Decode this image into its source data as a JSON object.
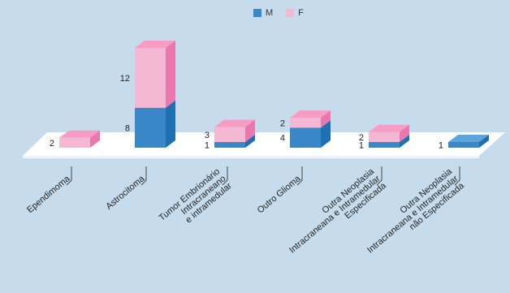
{
  "chart_data": {
    "type": "bar",
    "stacked": true,
    "three_d": true,
    "legend_position": "top-center",
    "categories": [
      "Ependimoma",
      "Astrocitoma",
      "Tumor Embrionário\nIntracraneano\ne intramedular",
      "Outro Glioma",
      "Outra Neoplasia\nIntracraneana e Intramedular\nEspecificada",
      "Outra Neoplasia\nIntracraneana e Intramedular\nnão Especificada"
    ],
    "series": [
      {
        "name": "M",
        "color": "#3a87c8",
        "values": [
          0,
          8,
          1,
          4,
          1,
          1
        ]
      },
      {
        "name": "F",
        "color": "#f5b8d3",
        "values": [
          2,
          12,
          3,
          2,
          2,
          0
        ]
      }
    ],
    "colors": {
      "background": "#c6dcec",
      "floor": "#ffffff",
      "m_front": "#3a87c8",
      "m_side": "#1f6fb3",
      "m_top": "#5da3dc",
      "f_front": "#f5b8d3",
      "f_side": "#e878ad",
      "f_top": "#f79dc4"
    }
  }
}
